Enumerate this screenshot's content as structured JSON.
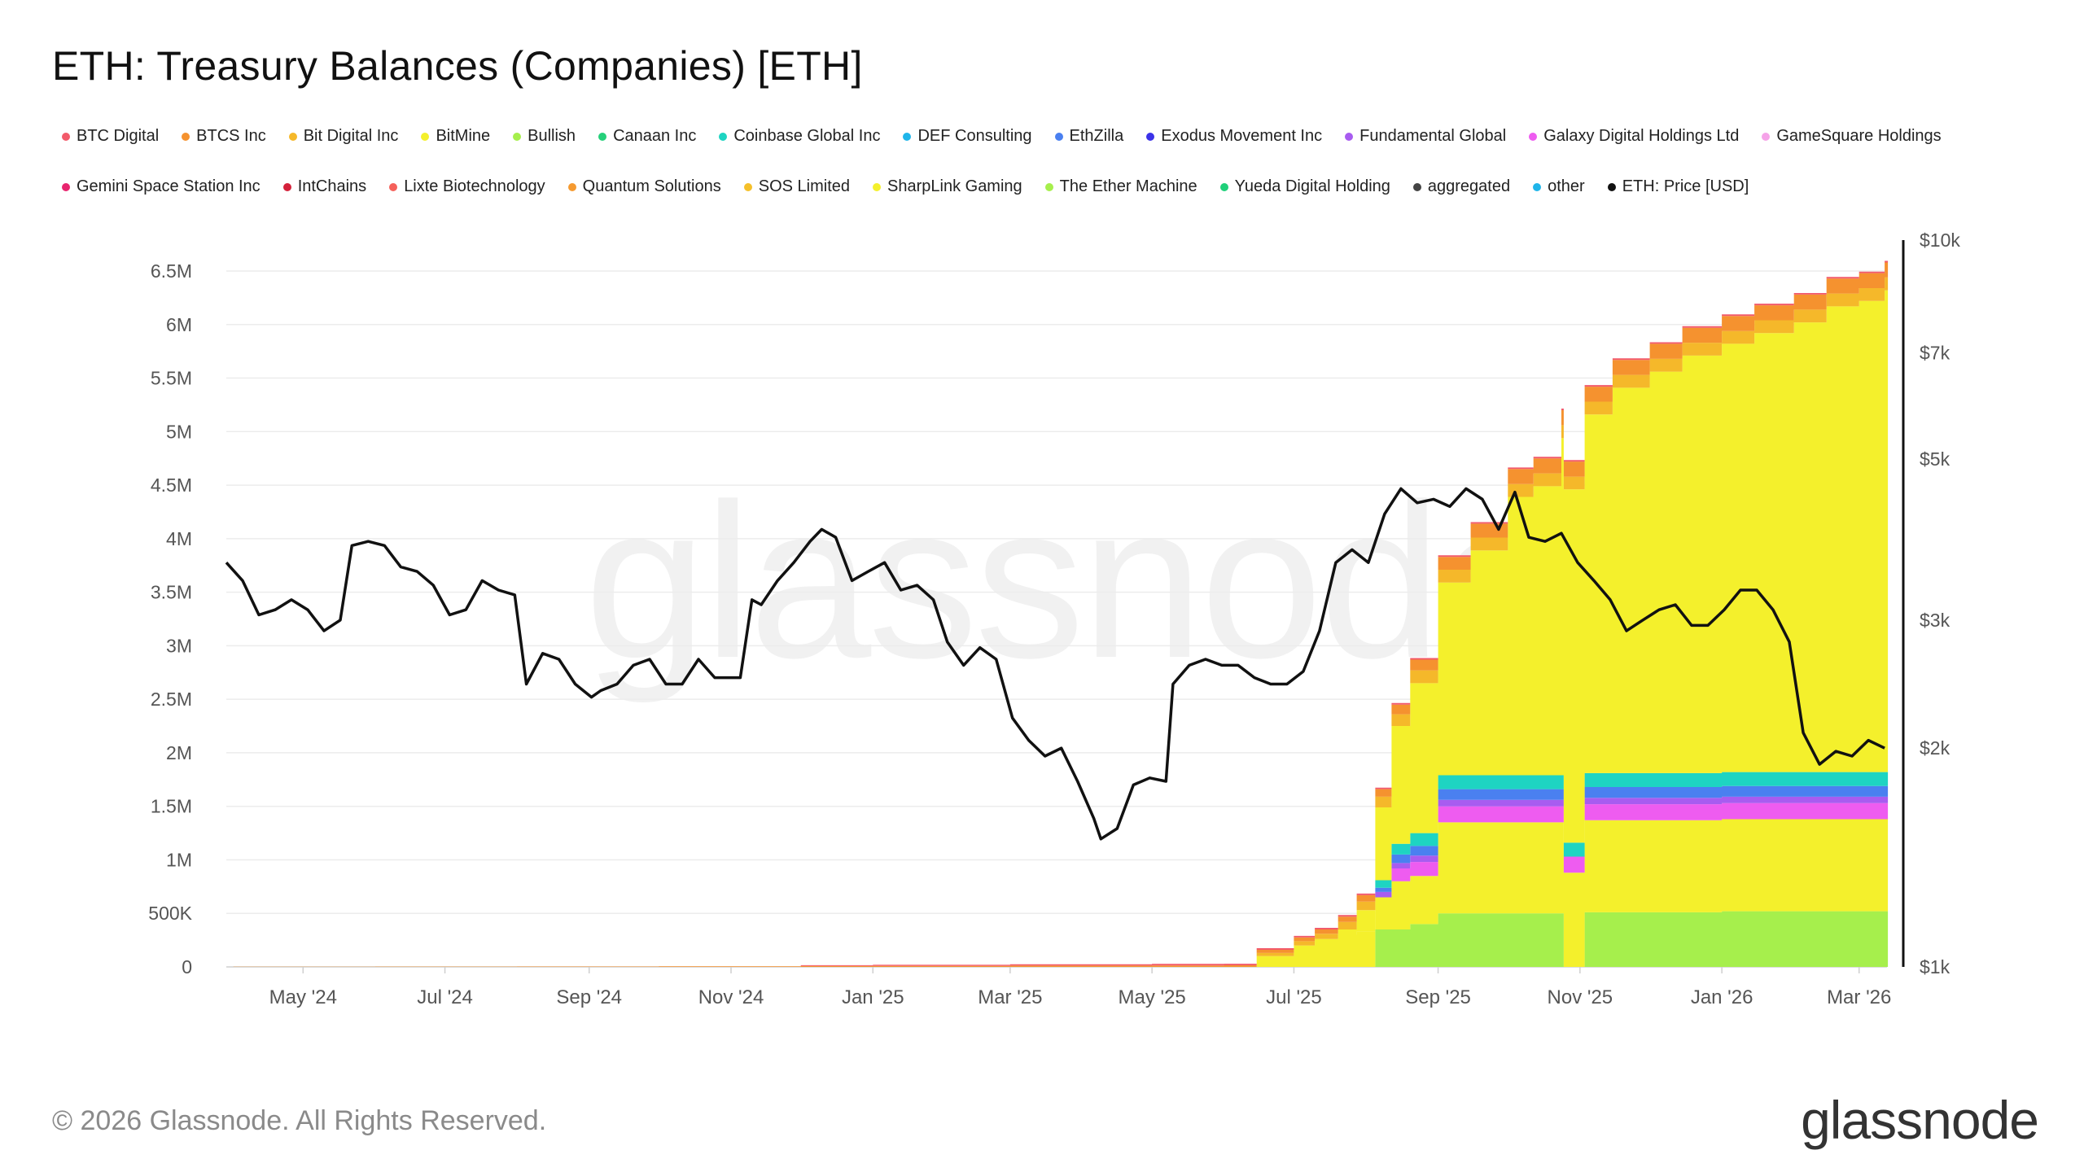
{
  "title": "ETH: Treasury Balances (Companies) [ETH]",
  "watermark": "glassnode",
  "footer": {
    "copyright": "© 2026 Glassnode. All Rights Reserved.",
    "logo_text": "glassnode"
  },
  "legend": {
    "row1": [
      {
        "label": "BTC Digital",
        "color": "#f25a6a"
      },
      {
        "label": "BTCS Inc",
        "color": "#f5922f"
      },
      {
        "label": "Bit Digital Inc",
        "color": "#f5b82a"
      },
      {
        "label": "BitMine",
        "color": "#f4f02c"
      },
      {
        "label": "Bullish",
        "color": "#a6ef4c"
      },
      {
        "label": "Canaan Inc",
        "color": "#25d07a"
      },
      {
        "label": "Coinbase Global Inc",
        "color": "#1ed4c2"
      },
      {
        "label": "DEF Consulting",
        "color": "#1fb5ea"
      },
      {
        "label": "EthZilla",
        "color": "#4a80f0"
      },
      {
        "label": "Exodus Movement Inc",
        "color": "#3b32e8"
      },
      {
        "label": "Fundamental Global",
        "color": "#a85cf0"
      },
      {
        "label": "Galaxy Digital Holdings Ltd",
        "color": "#ee5cf0"
      },
      {
        "label": "GameSquare Holdings",
        "color": "#f5a3e8"
      }
    ],
    "row2": [
      {
        "label": "Gemini Space Station Inc",
        "color": "#e8246e"
      },
      {
        "label": "IntChains",
        "color": "#d4213a"
      },
      {
        "label": "Lixte Biotechnology",
        "color": "#f5605a"
      },
      {
        "label": "Quantum Solutions",
        "color": "#f59a30"
      },
      {
        "label": "SOS Limited",
        "color": "#f5c02a"
      },
      {
        "label": "SharpLink Gaming",
        "color": "#f4f02c"
      },
      {
        "label": "The Ether Machine",
        "color": "#a6ef4c"
      },
      {
        "label": "Yueda Digital Holding",
        "color": "#20d07a"
      },
      {
        "label": "aggregated",
        "color": "#444444"
      },
      {
        "label": "other",
        "color": "#1fb5ea"
      },
      {
        "label": "ETH: Price [USD]",
        "color": "#111111"
      }
    ]
  },
  "chart_data": {
    "type": "area",
    "title": "ETH: Treasury Balances (Companies) [ETH]",
    "x_tick_labels": [
      "May '24",
      "Jul '24",
      "Sep '24",
      "Nov '24",
      "Jan '25",
      "Mar '25",
      "May '25",
      "Jul '25",
      "Sep '25",
      "Nov '25",
      "Jan '26",
      "Mar '26"
    ],
    "x_range": [
      "2024-03-29",
      "2026-03-13"
    ],
    "y_left": {
      "ticks": [
        0,
        500000,
        1000000,
        1500000,
        2000000,
        2500000,
        3000000,
        3500000,
        4000000,
        4500000,
        5000000,
        5500000,
        6000000,
        6500000
      ],
      "tick_labels": [
        "0",
        "500K",
        "1M",
        "1.5M",
        "2M",
        "2.5M",
        "3M",
        "3.5M",
        "4M",
        "4.5M",
        "5M",
        "5.5M",
        "6M",
        "6.5M"
      ],
      "range": [
        0,
        6500000
      ]
    },
    "y_right": {
      "scale": "log",
      "ticks": [
        1000,
        2000,
        3000,
        5000,
        7000,
        10000
      ],
      "tick_labels": [
        "$1k",
        "$2k",
        "$3k",
        "$5k",
        "$7k",
        "$10k"
      ],
      "range": [
        1000,
        10000
      ]
    },
    "grid": true,
    "stack_dates": [
      "2024-04-01",
      "2024-06-01",
      "2024-08-01",
      "2024-10-01",
      "2024-12-01",
      "2025-01-01",
      "2025-03-01",
      "2025-05-01",
      "2025-06-01",
      "2025-06-15",
      "2025-07-01",
      "2025-07-10",
      "2025-07-20",
      "2025-07-28",
      "2025-08-05",
      "2025-08-12",
      "2025-08-20",
      "2025-09-01",
      "2025-09-15",
      "2025-10-01",
      "2025-10-12",
      "2025-10-24",
      "2025-10-25",
      "2025-11-02",
      "2025-11-03",
      "2025-11-15",
      "2025-12-01",
      "2025-12-15",
      "2026-01-01",
      "2026-01-15",
      "2026-02-01",
      "2026-02-15",
      "2026-03-01",
      "2026-03-12"
    ],
    "series": [
      {
        "name": "The Ether Machine",
        "color": "#a6ef4c",
        "values": [
          0,
          0,
          0,
          0,
          0,
          0,
          0,
          0,
          0,
          0,
          0,
          0,
          0,
          0,
          350000,
          350000,
          400000,
          500000,
          500000,
          500000,
          500000,
          500000,
          0,
          0,
          510000,
          510000,
          510000,
          510000,
          520000,
          520000,
          520000,
          520000,
          520000,
          520000
        ]
      },
      {
        "name": "SharpLink Gaming",
        "color": "#f4f02c",
        "values": [
          0,
          0,
          0,
          0,
          0,
          0,
          0,
          0,
          0,
          100000,
          200000,
          260000,
          300000,
          330000,
          300000,
          450000,
          450000,
          850000,
          850000,
          850000,
          850000,
          850000,
          880000,
          880000,
          860000,
          860000,
          860000,
          860000,
          860000,
          860000,
          860000,
          860000,
          860000,
          860000
        ]
      },
      {
        "name": "Galaxy Digital Holdings Ltd",
        "color": "#ee5cf0",
        "values": [
          0,
          0,
          0,
          0,
          0,
          0,
          0,
          0,
          0,
          0,
          0,
          0,
          0,
          0,
          0,
          120000,
          130000,
          150000,
          150000,
          150000,
          150000,
          150000,
          150000,
          150000,
          150000,
          150000,
          150000,
          150000,
          150000,
          150000,
          150000,
          150000,
          150000,
          150000
        ]
      },
      {
        "name": "Fundamental Global",
        "color": "#a85cf0",
        "values": [
          0,
          0,
          0,
          0,
          0,
          0,
          0,
          0,
          0,
          0,
          0,
          0,
          0,
          0,
          50000,
          50000,
          60000,
          60000,
          60000,
          60000,
          60000,
          60000,
          0,
          0,
          60000,
          60000,
          60000,
          60000,
          60000,
          60000,
          60000,
          60000,
          60000,
          60000
        ]
      },
      {
        "name": "EthZilla",
        "color": "#4a80f0",
        "values": [
          0,
          0,
          0,
          0,
          0,
          0,
          0,
          0,
          0,
          0,
          0,
          0,
          0,
          0,
          40000,
          80000,
          90000,
          100000,
          100000,
          100000,
          100000,
          100000,
          0,
          0,
          100000,
          100000,
          100000,
          100000,
          100000,
          100000,
          100000,
          100000,
          100000,
          100000
        ]
      },
      {
        "name": "Coinbase Global Inc",
        "color": "#1ed4c2",
        "values": [
          0,
          0,
          0,
          0,
          0,
          0,
          0,
          0,
          0,
          0,
          0,
          0,
          0,
          0,
          70000,
          100000,
          120000,
          130000,
          130000,
          130000,
          130000,
          130000,
          130000,
          130000,
          130000,
          130000,
          130000,
          130000,
          130000,
          130000,
          130000,
          130000,
          130000,
          130000
        ]
      },
      {
        "name": "BitMine",
        "color": "#f4f02c",
        "values": [
          0,
          0,
          0,
          0,
          0,
          0,
          0,
          0,
          0,
          0,
          0,
          0,
          50000,
          200000,
          680000,
          1100000,
          1400000,
          1800000,
          2100000,
          2600000,
          2700000,
          3150000,
          3300000,
          3300000,
          3350000,
          3600000,
          3750000,
          3900000,
          4000000,
          4100000,
          4200000,
          4350000,
          4400000,
          4500000
        ]
      },
      {
        "name": "Bit Digital Inc",
        "color": "#f5b82a",
        "values": [
          0,
          0,
          0,
          0,
          0,
          0,
          0,
          0,
          0,
          30000,
          40000,
          50000,
          70000,
          80000,
          100000,
          110000,
          120000,
          120000,
          120000,
          120000,
          120000,
          120000,
          120000,
          120000,
          120000,
          120000,
          120000,
          120000,
          120000,
          120000,
          120000,
          120000,
          120000,
          120000
        ]
      },
      {
        "name": "BTCS Inc",
        "color": "#f5922f",
        "values": [
          2000,
          3000,
          4000,
          5000,
          8000,
          10000,
          12000,
          14000,
          15000,
          30000,
          35000,
          40000,
          50000,
          60000,
          70000,
          90000,
          100000,
          120000,
          130000,
          140000,
          140000,
          140000,
          140000,
          140000,
          140000,
          140000,
          140000,
          140000,
          140000,
          140000,
          140000,
          140000,
          140000,
          140000
        ]
      },
      {
        "name": "BTC Digital",
        "color": "#f25a6a",
        "values": [
          0,
          0,
          0,
          0,
          8000,
          10000,
          12000,
          14000,
          15000,
          15000,
          15000,
          15000,
          15000,
          15000,
          15000,
          15000,
          15000,
          15000,
          15000,
          15000,
          15000,
          15000,
          15000,
          15000,
          15000,
          15000,
          15000,
          15000,
          15000,
          15000,
          15000,
          15000,
          15000,
          15000
        ]
      }
    ],
    "price_series": {
      "name": "ETH: Price [USD]",
      "color": "#111111",
      "dates": [
        "2024-03-29",
        "2024-04-05",
        "2024-04-12",
        "2024-04-19",
        "2024-04-26",
        "2024-05-03",
        "2024-05-10",
        "2024-05-17",
        "2024-05-22",
        "2024-05-29",
        "2024-06-05",
        "2024-06-12",
        "2024-06-19",
        "2024-06-26",
        "2024-07-03",
        "2024-07-10",
        "2024-07-17",
        "2024-07-24",
        "2024-07-31",
        "2024-08-05",
        "2024-08-12",
        "2024-08-19",
        "2024-08-26",
        "2024-09-02",
        "2024-09-06",
        "2024-09-13",
        "2024-09-20",
        "2024-09-27",
        "2024-10-04",
        "2024-10-11",
        "2024-10-18",
        "2024-10-25",
        "2024-11-01",
        "2024-11-05",
        "2024-11-10",
        "2024-11-14",
        "2024-11-21",
        "2024-11-28",
        "2024-12-05",
        "2024-12-10",
        "2024-12-16",
        "2024-12-23",
        "2024-12-30",
        "2025-01-06",
        "2025-01-13",
        "2025-01-20",
        "2025-01-27",
        "2025-02-02",
        "2025-02-09",
        "2025-02-16",
        "2025-02-23",
        "2025-03-02",
        "2025-03-09",
        "2025-03-16",
        "2025-03-23",
        "2025-03-30",
        "2025-04-06",
        "2025-04-09",
        "2025-04-16",
        "2025-04-23",
        "2025-04-30",
        "2025-05-07",
        "2025-05-10",
        "2025-05-17",
        "2025-05-24",
        "2025-05-31",
        "2025-06-07",
        "2025-06-14",
        "2025-06-21",
        "2025-06-28",
        "2025-07-05",
        "2025-07-12",
        "2025-07-19",
        "2025-07-26",
        "2025-08-02",
        "2025-08-09",
        "2025-08-16",
        "2025-08-23",
        "2025-08-30",
        "2025-09-06",
        "2025-09-13",
        "2025-09-20",
        "2025-09-27",
        "2025-10-04",
        "2025-10-10",
        "2025-10-17",
        "2025-10-24",
        "2025-10-31",
        "2025-11-07",
        "2025-11-14",
        "2025-11-21",
        "2025-11-28",
        "2025-12-05",
        "2025-12-12",
        "2025-12-19",
        "2025-12-26",
        "2026-01-02",
        "2026-01-09",
        "2026-01-16",
        "2026-01-23",
        "2026-01-30",
        "2026-02-05",
        "2026-02-12",
        "2026-02-19",
        "2026-02-26",
        "2026-03-05",
        "2026-03-12"
      ],
      "values": [
        3600,
        3400,
        3050,
        3100,
        3200,
        3100,
        2900,
        3000,
        3800,
        3850,
        3800,
        3550,
        3500,
        3350,
        3050,
        3100,
        3400,
        3300,
        3250,
        2450,
        2700,
        2650,
        2450,
        2350,
        2400,
        2450,
        2600,
        2650,
        2450,
        2450,
        2650,
        2500,
        2500,
        2500,
        3200,
        3150,
        3400,
        3600,
        3850,
        4000,
        3900,
        3400,
        3500,
        3600,
        3300,
        3350,
        3200,
        2800,
        2600,
        2750,
        2650,
        2200,
        2050,
        1950,
        2000,
        1800,
        1600,
        1500,
        1550,
        1780,
        1820,
        1800,
        2450,
        2600,
        2650,
        2600,
        2600,
        2500,
        2450,
        2450,
        2550,
        2900,
        3600,
        3750,
        3600,
        4200,
        4550,
        4350,
        4400,
        4300,
        4550,
        4400,
        4000,
        4500,
        3900,
        3850,
        3950,
        3600,
        3400,
        3200,
        2900,
        3000,
        3100,
        3150,
        2950,
        2950,
        3100,
        3300,
        3300,
        3100,
        2800,
        2100,
        1900,
        1980,
        1950,
        2050,
        2000
      ]
    }
  }
}
